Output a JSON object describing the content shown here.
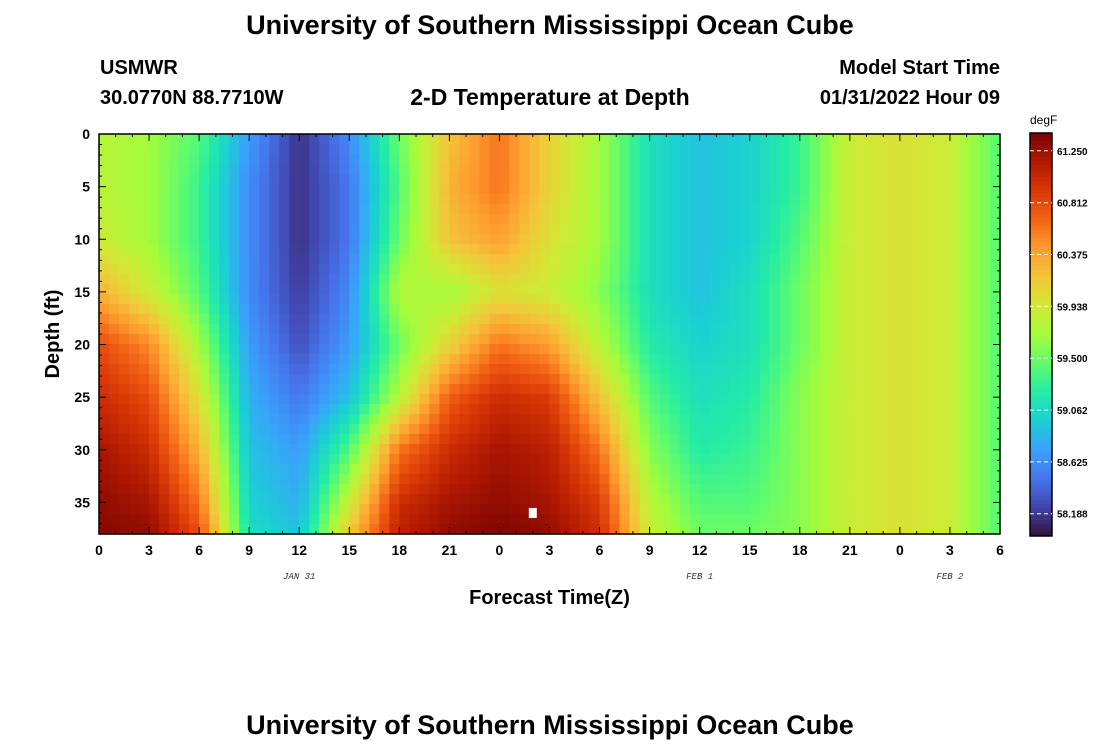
{
  "header": {
    "main_title": "University of Southern Mississippi Ocean Cube",
    "station_name": "USMWR",
    "station_coords": "30.0770N  88.7710W",
    "center_title": "2-D Temperature at Depth",
    "start_label": "Model Start Time",
    "start_value": "01/31/2022 Hour 09"
  },
  "footer": {
    "repeat_title": "University of Southern Mississippi Ocean Cube"
  },
  "chart_data": {
    "type": "heatmap",
    "title": "2-D Temperature at Depth",
    "xlabel": "Forecast Time(Z)",
    "ylabel": "Depth (ft)",
    "x_hours": [
      0,
      54
    ],
    "x_tick_labels": [
      "0",
      "3",
      "6",
      "9",
      "12",
      "15",
      "18",
      "21",
      "0",
      "3",
      "6",
      "9",
      "12",
      "15",
      "18",
      "21",
      "0",
      "3",
      "6"
    ],
    "x_day_labels": [
      {
        "label": "JAN 31",
        "hour": 12
      },
      {
        "label": "FEB 1",
        "hour": 36
      },
      {
        "label": "FEB 2",
        "hour": 51
      }
    ],
    "ylim": [
      0,
      38
    ],
    "y_ticks": [
      0,
      5,
      10,
      15,
      20,
      25,
      30,
      35
    ],
    "colorbar": {
      "unit": "degF",
      "min": 58.0,
      "max": 61.4,
      "ticks": [
        61.25,
        60.812,
        60.375,
        59.938,
        59.5,
        59.062,
        58.625,
        58.188
      ],
      "tick_labels": [
        "61.250",
        "60.812",
        "60.375",
        "59.938",
        "59.500",
        "59.062",
        "58.625",
        "58.188"
      ],
      "colors": [
        "#30123b",
        "#4145ab",
        "#4675ed",
        "#39a2fc",
        "#1bcfd4",
        "#24eca6",
        "#61fc6c",
        "#a4fc3b",
        "#d1e834",
        "#f3c63a",
        "#fe9b2d",
        "#f36315",
        "#d93806",
        "#b11901",
        "#7a0403"
      ]
    },
    "marker": {
      "hour": 26,
      "depth_ft": 36,
      "color": "#ffffff"
    },
    "grid": {
      "hours": [
        0,
        3,
        6,
        9,
        12,
        15,
        18,
        21,
        24,
        27,
        30,
        33,
        36,
        39,
        42,
        45,
        48,
        51,
        54
      ],
      "depths_ft": [
        0,
        5,
        10,
        15,
        20,
        25,
        30,
        35,
        38
      ],
      "temperature_degF": [
        [
          59.8,
          59.7,
          59.4,
          58.7,
          58.15,
          58.6,
          59.5,
          60.2,
          60.6,
          60.1,
          59.7,
          59.1,
          58.9,
          59.0,
          59.3,
          59.9,
          60.0,
          59.9,
          59.4
        ],
        [
          59.8,
          59.7,
          59.3,
          58.6,
          58.15,
          58.5,
          59.4,
          60.3,
          60.6,
          60.1,
          59.7,
          59.1,
          58.9,
          59.0,
          59.3,
          59.9,
          60.0,
          59.9,
          59.4
        ],
        [
          59.9,
          59.7,
          59.3,
          58.6,
          58.15,
          58.5,
          59.5,
          60.2,
          60.4,
          60.0,
          59.7,
          59.1,
          58.9,
          59.0,
          59.4,
          59.9,
          60.0,
          59.9,
          59.4
        ],
        [
          60.3,
          59.9,
          59.4,
          58.6,
          58.2,
          58.6,
          59.8,
          59.7,
          60.0,
          59.9,
          59.6,
          59.1,
          58.9,
          59.1,
          59.5,
          59.9,
          60.0,
          59.9,
          59.4
        ],
        [
          60.8,
          60.5,
          59.7,
          58.7,
          58.3,
          58.7,
          59.5,
          60.1,
          60.6,
          60.4,
          59.8,
          59.2,
          59.0,
          59.1,
          59.5,
          59.9,
          60.0,
          59.9,
          59.4
        ],
        [
          61.0,
          60.8,
          60.0,
          58.8,
          58.5,
          58.9,
          59.8,
          60.7,
          61.0,
          60.9,
          60.2,
          59.4,
          59.1,
          59.2,
          59.6,
          59.9,
          60.0,
          59.9,
          59.4
        ],
        [
          61.2,
          61.0,
          60.3,
          58.9,
          58.7,
          59.4,
          60.6,
          61.0,
          61.2,
          61.1,
          60.6,
          59.6,
          59.2,
          59.3,
          59.6,
          59.9,
          60.0,
          59.9,
          59.4
        ],
        [
          61.3,
          61.2,
          60.6,
          59.0,
          58.8,
          59.9,
          61.0,
          61.2,
          61.3,
          61.2,
          60.9,
          59.8,
          59.4,
          59.4,
          59.6,
          59.9,
          60.0,
          59.9,
          59.4
        ],
        [
          61.35,
          61.3,
          60.8,
          59.1,
          58.9,
          60.2,
          61.1,
          61.3,
          61.38,
          61.3,
          61.0,
          59.9,
          59.5,
          59.5,
          59.6,
          59.9,
          60.0,
          59.9,
          59.4
        ]
      ]
    }
  }
}
